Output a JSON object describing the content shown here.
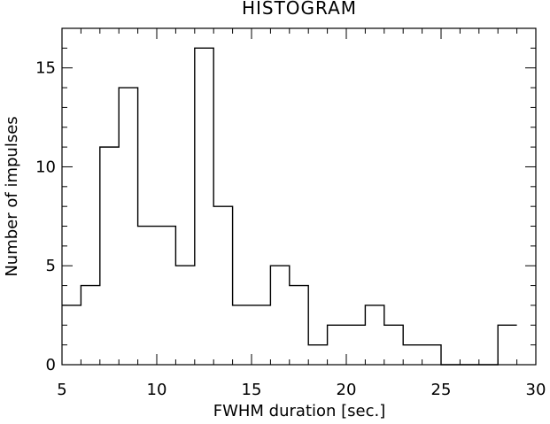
{
  "chart_data": {
    "type": "bar",
    "title": "HISTOGRAM",
    "xlabel": "FWHM duration [sec.]",
    "ylabel": "Number of impulses",
    "xlim": [
      5,
      30
    ],
    "ylim": [
      0,
      17
    ],
    "x_ticks": [
      "5",
      "10",
      "15",
      "20",
      "25",
      "30"
    ],
    "y_ticks": [
      "0",
      "5",
      "10",
      "15"
    ],
    "bin_width": 1,
    "bin_start": 5,
    "values": [
      3,
      4,
      11,
      14,
      7,
      7,
      5,
      16,
      8,
      3,
      3,
      5,
      4,
      1,
      2,
      2,
      3,
      2,
      1,
      1,
      0,
      0,
      0,
      2
    ],
    "grid": false,
    "line_color": "#000000"
  }
}
